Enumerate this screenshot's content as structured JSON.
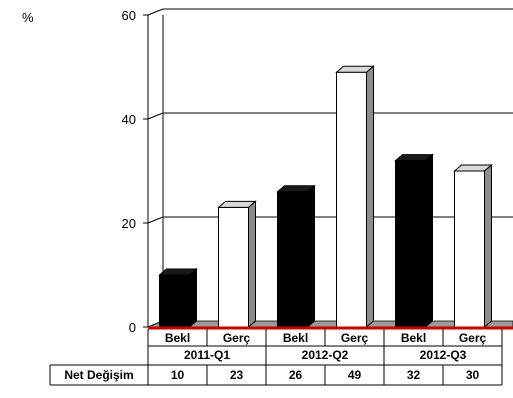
{
  "chart_data": {
    "type": "bar",
    "ylabel": "%",
    "ylim": [
      0,
      60
    ],
    "yticks": [
      0,
      20,
      40,
      60
    ],
    "grid": true,
    "groups": [
      "2011-Q1",
      "2012-Q2",
      "2012-Q3"
    ],
    "subcategories": [
      "Bekl",
      "Gerç"
    ],
    "series": [
      {
        "values": [
          10,
          26,
          32
        ],
        "color": "#000000"
      },
      {
        "values": [
          23,
          49,
          30
        ],
        "color": "#ffffff"
      }
    ],
    "table": {
      "row_label": "Net Değişim",
      "values": [
        "10",
        "23",
        "26",
        "49",
        "32",
        "30"
      ]
    },
    "baseline_color": "#cc0000"
  }
}
